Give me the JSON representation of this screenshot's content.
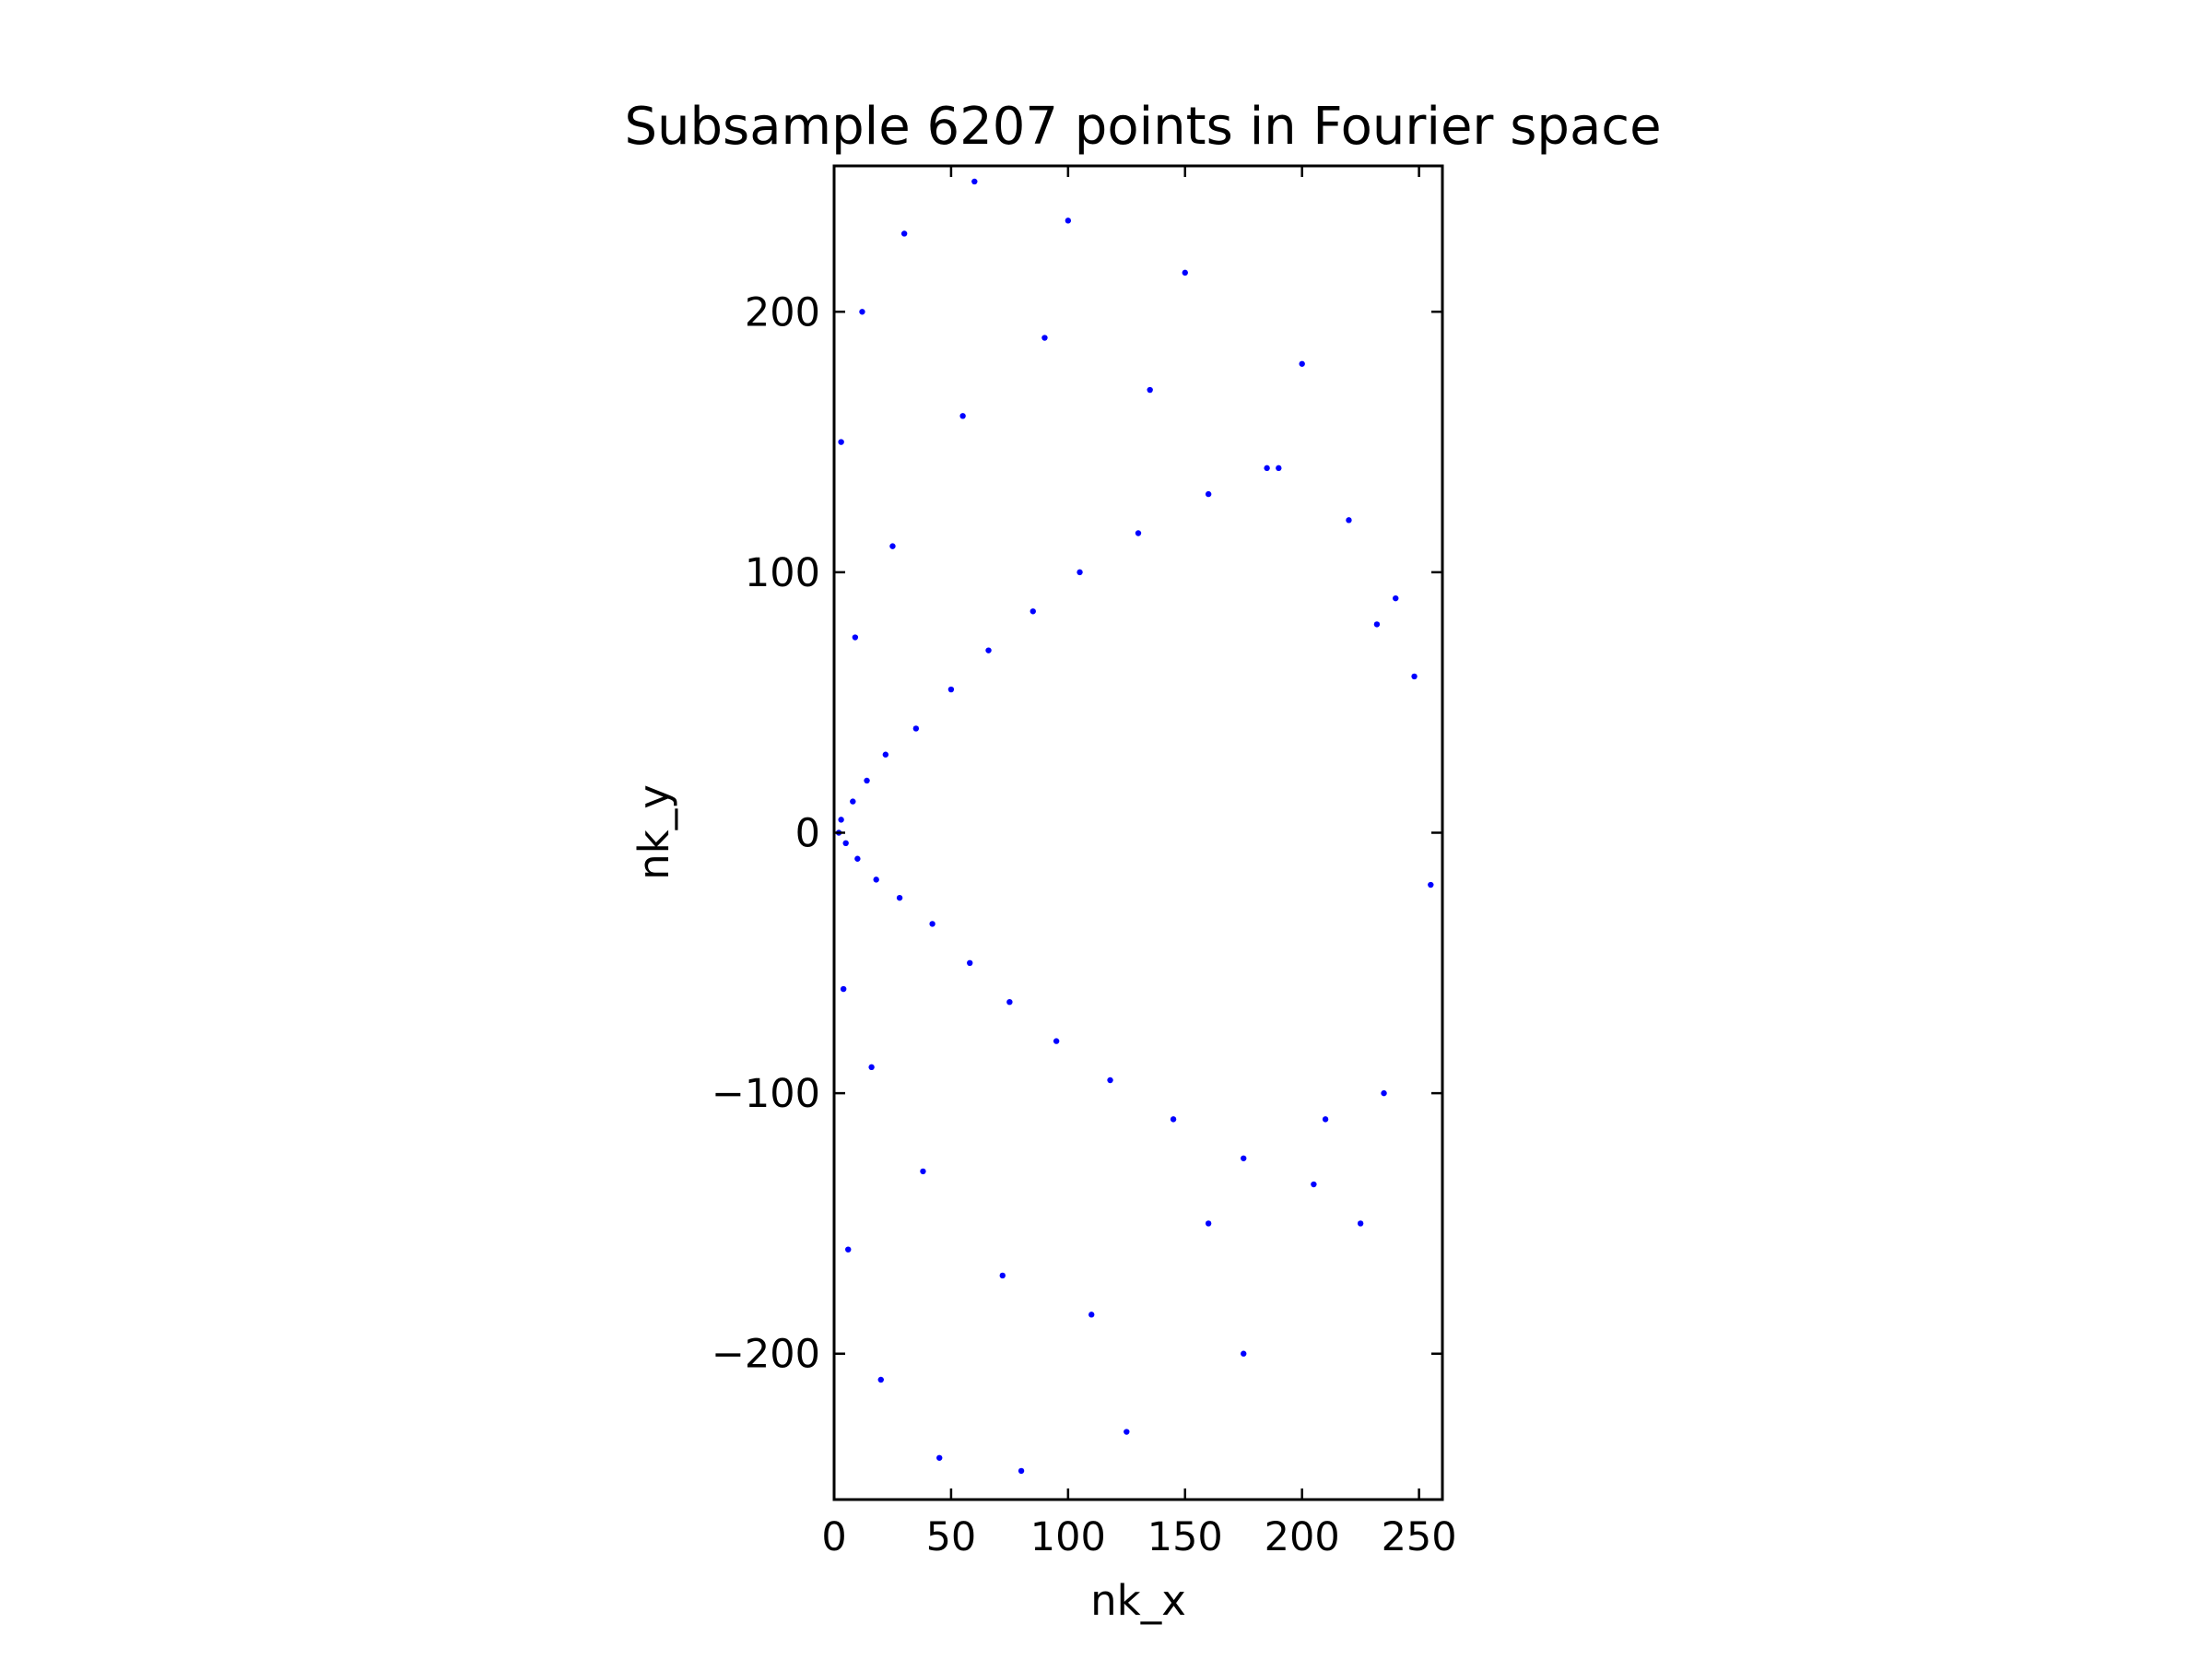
{
  "chart_data": {
    "type": "scatter",
    "title": "Subsample 6207 points in Fourier space",
    "xlabel": "nk_x",
    "ylabel": "nk_y",
    "xlim": [
      0,
      260
    ],
    "ylim": [
      -256,
      256
    ],
    "xticks": [
      0,
      50,
      100,
      150,
      200,
      250
    ],
    "yticks": [
      -200,
      -100,
      0,
      100,
      200
    ],
    "xtick_labels": [
      "0",
      "50",
      "100",
      "150",
      "200",
      "250"
    ],
    "ytick_labels": [
      "−200",
      "−100",
      "0",
      "100",
      "200"
    ],
    "grid": false,
    "point_count": 6207,
    "marker_color": "#0000ff",
    "distribution": "variable-density samples concentrated near origin (0,0), filling the half-disk x >= 0 of radius ~256",
    "series": [
      {
        "name": "",
        "x": [
          2,
          3,
          5,
          8,
          10,
          14,
          18,
          22,
          28,
          35,
          42,
          50,
          58,
          66,
          75,
          85,
          95,
          105,
          118,
          130,
          145,
          160,
          175,
          190,
          205,
          220,
          235,
          248,
          255,
          3,
          6,
          12,
          20,
          30,
          45,
          60,
          80,
          100,
          125,
          150,
          175,
          200,
          225,
          240,
          4,
          9,
          16,
          25,
          38,
          55,
          72,
          90,
          110,
          135,
          160,
          185,
          210,
          232
        ],
        "y": [
          0,
          5,
          -4,
          12,
          -10,
          20,
          -18,
          30,
          -25,
          40,
          -35,
          55,
          -50,
          70,
          -65,
          85,
          -80,
          100,
          -95,
          115,
          -110,
          130,
          -125,
          140,
          -135,
          120,
          -100,
          60,
          -20,
          150,
          -160,
          200,
          -210,
          230,
          -240,
          250,
          -245,
          235,
          -230,
          215,
          -200,
          180,
          -150,
          90,
          -60,
          75,
          -90,
          110,
          -130,
          160,
          -170,
          190,
          -185,
          170,
          -150,
          140,
          -110,
          80
        ]
      }
    ]
  }
}
